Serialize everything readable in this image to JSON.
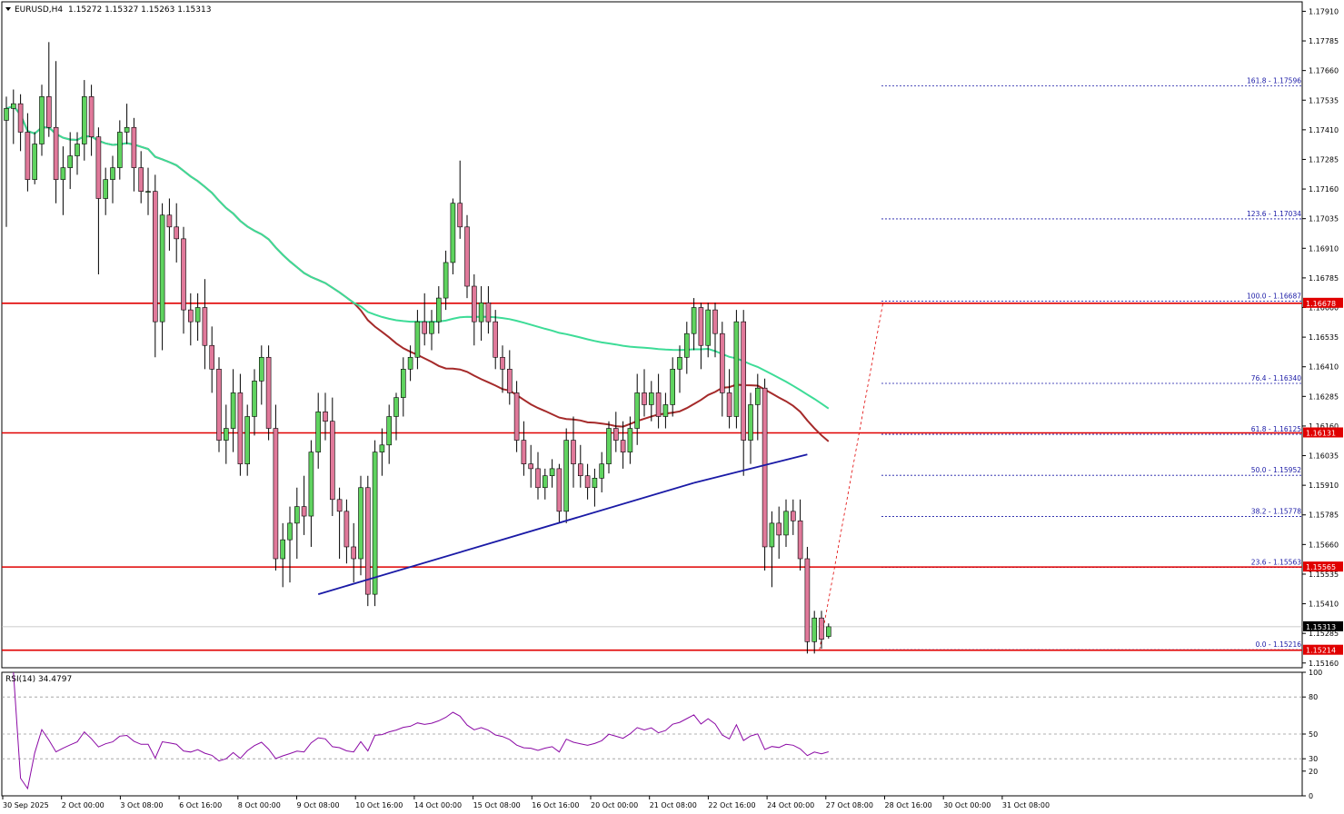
{
  "header": {
    "symbol": "EURUSD,H4",
    "ohlc": "1.15272 1.15327 1.15263 1.15313"
  },
  "rsi_header": "RSI(14) 34.4797",
  "colors": {
    "bull_candle": "#5fd35f",
    "bear_candle": "#e0799a",
    "ma_fast": "#a52a2a",
    "ma_slow": "#3ddc97",
    "level_line": "#e00000",
    "trendline": "#1a1aa6",
    "fib_line": "#1a1aa6",
    "rsi_line": "#8b0aa5"
  },
  "price_axis": {
    "ticks": [
      "1.17910",
      "1.17785",
      "1.17660",
      "1.17535",
      "1.17410",
      "1.17285",
      "1.17160",
      "1.17035",
      "1.16910",
      "1.16785",
      "1.16660",
      "1.16535",
      "1.16410",
      "1.16285",
      "1.16160",
      "1.16035",
      "1.15910",
      "1.15785",
      "1.15660",
      "1.15535",
      "1.15410",
      "1.15285",
      "1.15160"
    ],
    "current_price": "1.15313"
  },
  "levels": [
    {
      "price": 1.16678,
      "label": "1.16678"
    },
    {
      "price": 1.16131,
      "label": "1.16131"
    },
    {
      "price": 1.15565,
      "label": "1.15565"
    },
    {
      "price": 1.15214,
      "label": "1.15214"
    }
  ],
  "fib_levels": [
    {
      "price": 1.17596,
      "label": "161.8 - 1.17596"
    },
    {
      "price": 1.17034,
      "label": "123.6 - 1.17034"
    },
    {
      "price": 1.16687,
      "label": "100.0 - 1.16687"
    },
    {
      "price": 1.1634,
      "label": "76.4 - 1.16340"
    },
    {
      "price": 1.16125,
      "label": "61.8 - 1.16125"
    },
    {
      "price": 1.15952,
      "label": "50.0 - 1.15952"
    },
    {
      "price": 1.15778,
      "label": "38.2 - 1.15778"
    },
    {
      "price": 1.15563,
      "label": "23.6 - 1.15563"
    },
    {
      "price": 1.15216,
      "label": "0.0 - 1.15216"
    }
  ],
  "rsi_axis": {
    "ticks": [
      "100",
      "80",
      "50",
      "30",
      "20",
      "0"
    ]
  },
  "time_axis": {
    "labels": [
      "30 Sep 2025",
      "2 Oct 00:00",
      "3 Oct 08:00",
      "6 Oct 16:00",
      "8 Oct 00:00",
      "9 Oct 08:00",
      "10 Oct 16:00",
      "14 Oct 00:00",
      "15 Oct 08:00",
      "16 Oct 16:00",
      "20 Oct 00:00",
      "21 Oct 08:00",
      "22 Oct 16:00",
      "24 Oct 00:00",
      "27 Oct 08:00",
      "28 Oct 16:00",
      "30 Oct 00:00",
      "31 Oct 08:00"
    ]
  },
  "chart_data": {
    "type": "candlestick",
    "symbol": "EURUSD",
    "timeframe": "H4",
    "ylim": [
      1.1514,
      1.1795
    ],
    "rsi_period": 14,
    "rsi_last": 34.4797,
    "candles": [
      [
        1.1745,
        1.1755,
        1.17,
        1.175
      ],
      [
        1.175,
        1.1758,
        1.1735,
        1.1752
      ],
      [
        1.1752,
        1.1756,
        1.1732,
        1.174
      ],
      [
        1.174,
        1.1748,
        1.1715,
        1.172
      ],
      [
        1.172,
        1.174,
        1.1718,
        1.1735
      ],
      [
        1.1735,
        1.176,
        1.173,
        1.1755
      ],
      [
        1.1755,
        1.1778,
        1.1738,
        1.1742
      ],
      [
        1.1742,
        1.177,
        1.171,
        1.172
      ],
      [
        1.172,
        1.1734,
        1.1705,
        1.1725
      ],
      [
        1.1725,
        1.174,
        1.1716,
        1.173
      ],
      [
        1.173,
        1.174,
        1.1722,
        1.1735
      ],
      [
        1.1735,
        1.1762,
        1.1728,
        1.1755
      ],
      [
        1.1755,
        1.176,
        1.173,
        1.1738
      ],
      [
        1.1738,
        1.1742,
        1.168,
        1.1712
      ],
      [
        1.1712,
        1.1725,
        1.1705,
        1.172
      ],
      [
        1.172,
        1.173,
        1.171,
        1.1725
      ],
      [
        1.1725,
        1.1745,
        1.172,
        1.174
      ],
      [
        1.174,
        1.1752,
        1.1735,
        1.1742
      ],
      [
        1.1742,
        1.1746,
        1.1715,
        1.1725
      ],
      [
        1.1725,
        1.1732,
        1.171,
        1.1715
      ],
      [
        1.1715,
        1.1725,
        1.1705,
        1.1715
      ],
      [
        1.1715,
        1.1722,
        1.1645,
        1.166
      ],
      [
        1.166,
        1.171,
        1.1648,
        1.1705
      ],
      [
        1.1705,
        1.1712,
        1.169,
        1.17
      ],
      [
        1.17,
        1.171,
        1.1685,
        1.1695
      ],
      [
        1.1695,
        1.17,
        1.1655,
        1.1665
      ],
      [
        1.1665,
        1.1672,
        1.165,
        1.166
      ],
      [
        1.166,
        1.1672,
        1.1652,
        1.1666
      ],
      [
        1.1666,
        1.1678,
        1.164,
        1.165
      ],
      [
        1.165,
        1.1658,
        1.163,
        1.164
      ],
      [
        1.164,
        1.1645,
        1.1605,
        1.161
      ],
      [
        1.161,
        1.1625,
        1.16,
        1.1615
      ],
      [
        1.1615,
        1.164,
        1.1605,
        1.163
      ],
      [
        1.163,
        1.1638,
        1.1595,
        1.16
      ],
      [
        1.16,
        1.1625,
        1.1595,
        1.162
      ],
      [
        1.162,
        1.164,
        1.1612,
        1.1635
      ],
      [
        1.1635,
        1.165,
        1.1625,
        1.1645
      ],
      [
        1.1645,
        1.165,
        1.161,
        1.1615
      ],
      [
        1.1615,
        1.1625,
        1.1555,
        1.156
      ],
      [
        1.156,
        1.1575,
        1.1548,
        1.1568
      ],
      [
        1.1568,
        1.1582,
        1.155,
        1.1575
      ],
      [
        1.1575,
        1.159,
        1.156,
        1.1582
      ],
      [
        1.1582,
        1.1595,
        1.157,
        1.1578
      ],
      [
        1.1578,
        1.161,
        1.1565,
        1.1605
      ],
      [
        1.1605,
        1.163,
        1.1598,
        1.1622
      ],
      [
        1.1622,
        1.163,
        1.161,
        1.1618
      ],
      [
        1.1618,
        1.1628,
        1.1578,
        1.1585
      ],
      [
        1.1585,
        1.159,
        1.156,
        1.158
      ],
      [
        1.158,
        1.1585,
        1.1558,
        1.1565
      ],
      [
        1.1565,
        1.1575,
        1.155,
        1.156
      ],
      [
        1.156,
        1.1595,
        1.1553,
        1.159
      ],
      [
        1.159,
        1.1595,
        1.154,
        1.1545
      ],
      [
        1.1545,
        1.161,
        1.154,
        1.1605
      ],
      [
        1.1605,
        1.1615,
        1.1595,
        1.1608
      ],
      [
        1.1608,
        1.1625,
        1.16,
        1.162
      ],
      [
        1.162,
        1.163,
        1.161,
        1.1628
      ],
      [
        1.1628,
        1.1645,
        1.162,
        1.164
      ],
      [
        1.164,
        1.165,
        1.1635,
        1.1645
      ],
      [
        1.1645,
        1.1665,
        1.164,
        1.166
      ],
      [
        1.166,
        1.1672,
        1.165,
        1.1655
      ],
      [
        1.1655,
        1.1665,
        1.1648,
        1.166
      ],
      [
        1.166,
        1.1675,
        1.1655,
        1.167
      ],
      [
        1.167,
        1.169,
        1.1665,
        1.1685
      ],
      [
        1.1685,
        1.1712,
        1.168,
        1.171
      ],
      [
        1.171,
        1.1728,
        1.1695,
        1.17
      ],
      [
        1.17,
        1.1705,
        1.167,
        1.1675
      ],
      [
        1.1675,
        1.168,
        1.165,
        1.166
      ],
      [
        1.166,
        1.1675,
        1.1652,
        1.1668
      ],
      [
        1.1668,
        1.1675,
        1.1655,
        1.166
      ],
      [
        1.166,
        1.1665,
        1.164,
        1.1645
      ],
      [
        1.1645,
        1.165,
        1.163,
        1.164
      ],
      [
        1.164,
        1.1648,
        1.1625,
        1.163
      ],
      [
        1.163,
        1.1635,
        1.1605,
        1.161
      ],
      [
        1.161,
        1.1618,
        1.1595,
        1.16
      ],
      [
        1.16,
        1.1608,
        1.159,
        1.1598
      ],
      [
        1.1598,
        1.1605,
        1.1585,
        1.159
      ],
      [
        1.159,
        1.1598,
        1.1585,
        1.1595
      ],
      [
        1.1595,
        1.1602,
        1.159,
        1.1598
      ],
      [
        1.1598,
        1.16,
        1.1575,
        1.158
      ],
      [
        1.158,
        1.1615,
        1.1575,
        1.161
      ],
      [
        1.161,
        1.162,
        1.159,
        1.16
      ],
      [
        1.16,
        1.1608,
        1.159,
        1.1595
      ],
      [
        1.1595,
        1.16,
        1.1585,
        1.159
      ],
      [
        1.159,
        1.1598,
        1.1582,
        1.1594
      ],
      [
        1.1594,
        1.1605,
        1.1588,
        1.16
      ],
      [
        1.16,
        1.1618,
        1.1596,
        1.1615
      ],
      [
        1.1615,
        1.1622,
        1.1605,
        1.161
      ],
      [
        1.161,
        1.1618,
        1.1598,
        1.1605
      ],
      [
        1.1605,
        1.162,
        1.16,
        1.1615
      ],
      [
        1.1615,
        1.1638,
        1.1608,
        1.163
      ],
      [
        1.163,
        1.164,
        1.162,
        1.1625
      ],
      [
        1.1625,
        1.1635,
        1.1618,
        1.163
      ],
      [
        1.163,
        1.1638,
        1.1615,
        1.162
      ],
      [
        1.162,
        1.163,
        1.1615,
        1.1625
      ],
      [
        1.1625,
        1.1645,
        1.162,
        1.164
      ],
      [
        1.164,
        1.165,
        1.163,
        1.1645
      ],
      [
        1.1645,
        1.166,
        1.1638,
        1.1655
      ],
      [
        1.1655,
        1.167,
        1.1648,
        1.1666
      ],
      [
        1.1666,
        1.1668,
        1.164,
        1.165
      ],
      [
        1.165,
        1.1668,
        1.1645,
        1.1665
      ],
      [
        1.1665,
        1.1668,
        1.1645,
        1.1655
      ],
      [
        1.1655,
        1.166,
        1.162,
        1.163
      ],
      [
        1.163,
        1.164,
        1.1615,
        1.162
      ],
      [
        1.162,
        1.1665,
        1.1615,
        1.166
      ],
      [
        1.166,
        1.1665,
        1.1595,
        1.161
      ],
      [
        1.161,
        1.163,
        1.16,
        1.1625
      ],
      [
        1.1625,
        1.1638,
        1.161,
        1.1632
      ],
      [
        1.1632,
        1.1636,
        1.1555,
        1.1565
      ],
      [
        1.1565,
        1.158,
        1.1548,
        1.1575
      ],
      [
        1.1575,
        1.1582,
        1.156,
        1.157
      ],
      [
        1.157,
        1.1585,
        1.1565,
        1.158
      ],
      [
        1.158,
        1.1585,
        1.157,
        1.1576
      ],
      [
        1.1576,
        1.1585,
        1.1555,
        1.156
      ],
      [
        1.156,
        1.1565,
        1.152,
        1.1525
      ],
      [
        1.1525,
        1.1538,
        1.152,
        1.1535
      ],
      [
        1.1535,
        1.1538,
        1.1522,
        1.1526
      ],
      [
        1.15272,
        1.15327,
        1.15263,
        1.15313
      ]
    ]
  }
}
